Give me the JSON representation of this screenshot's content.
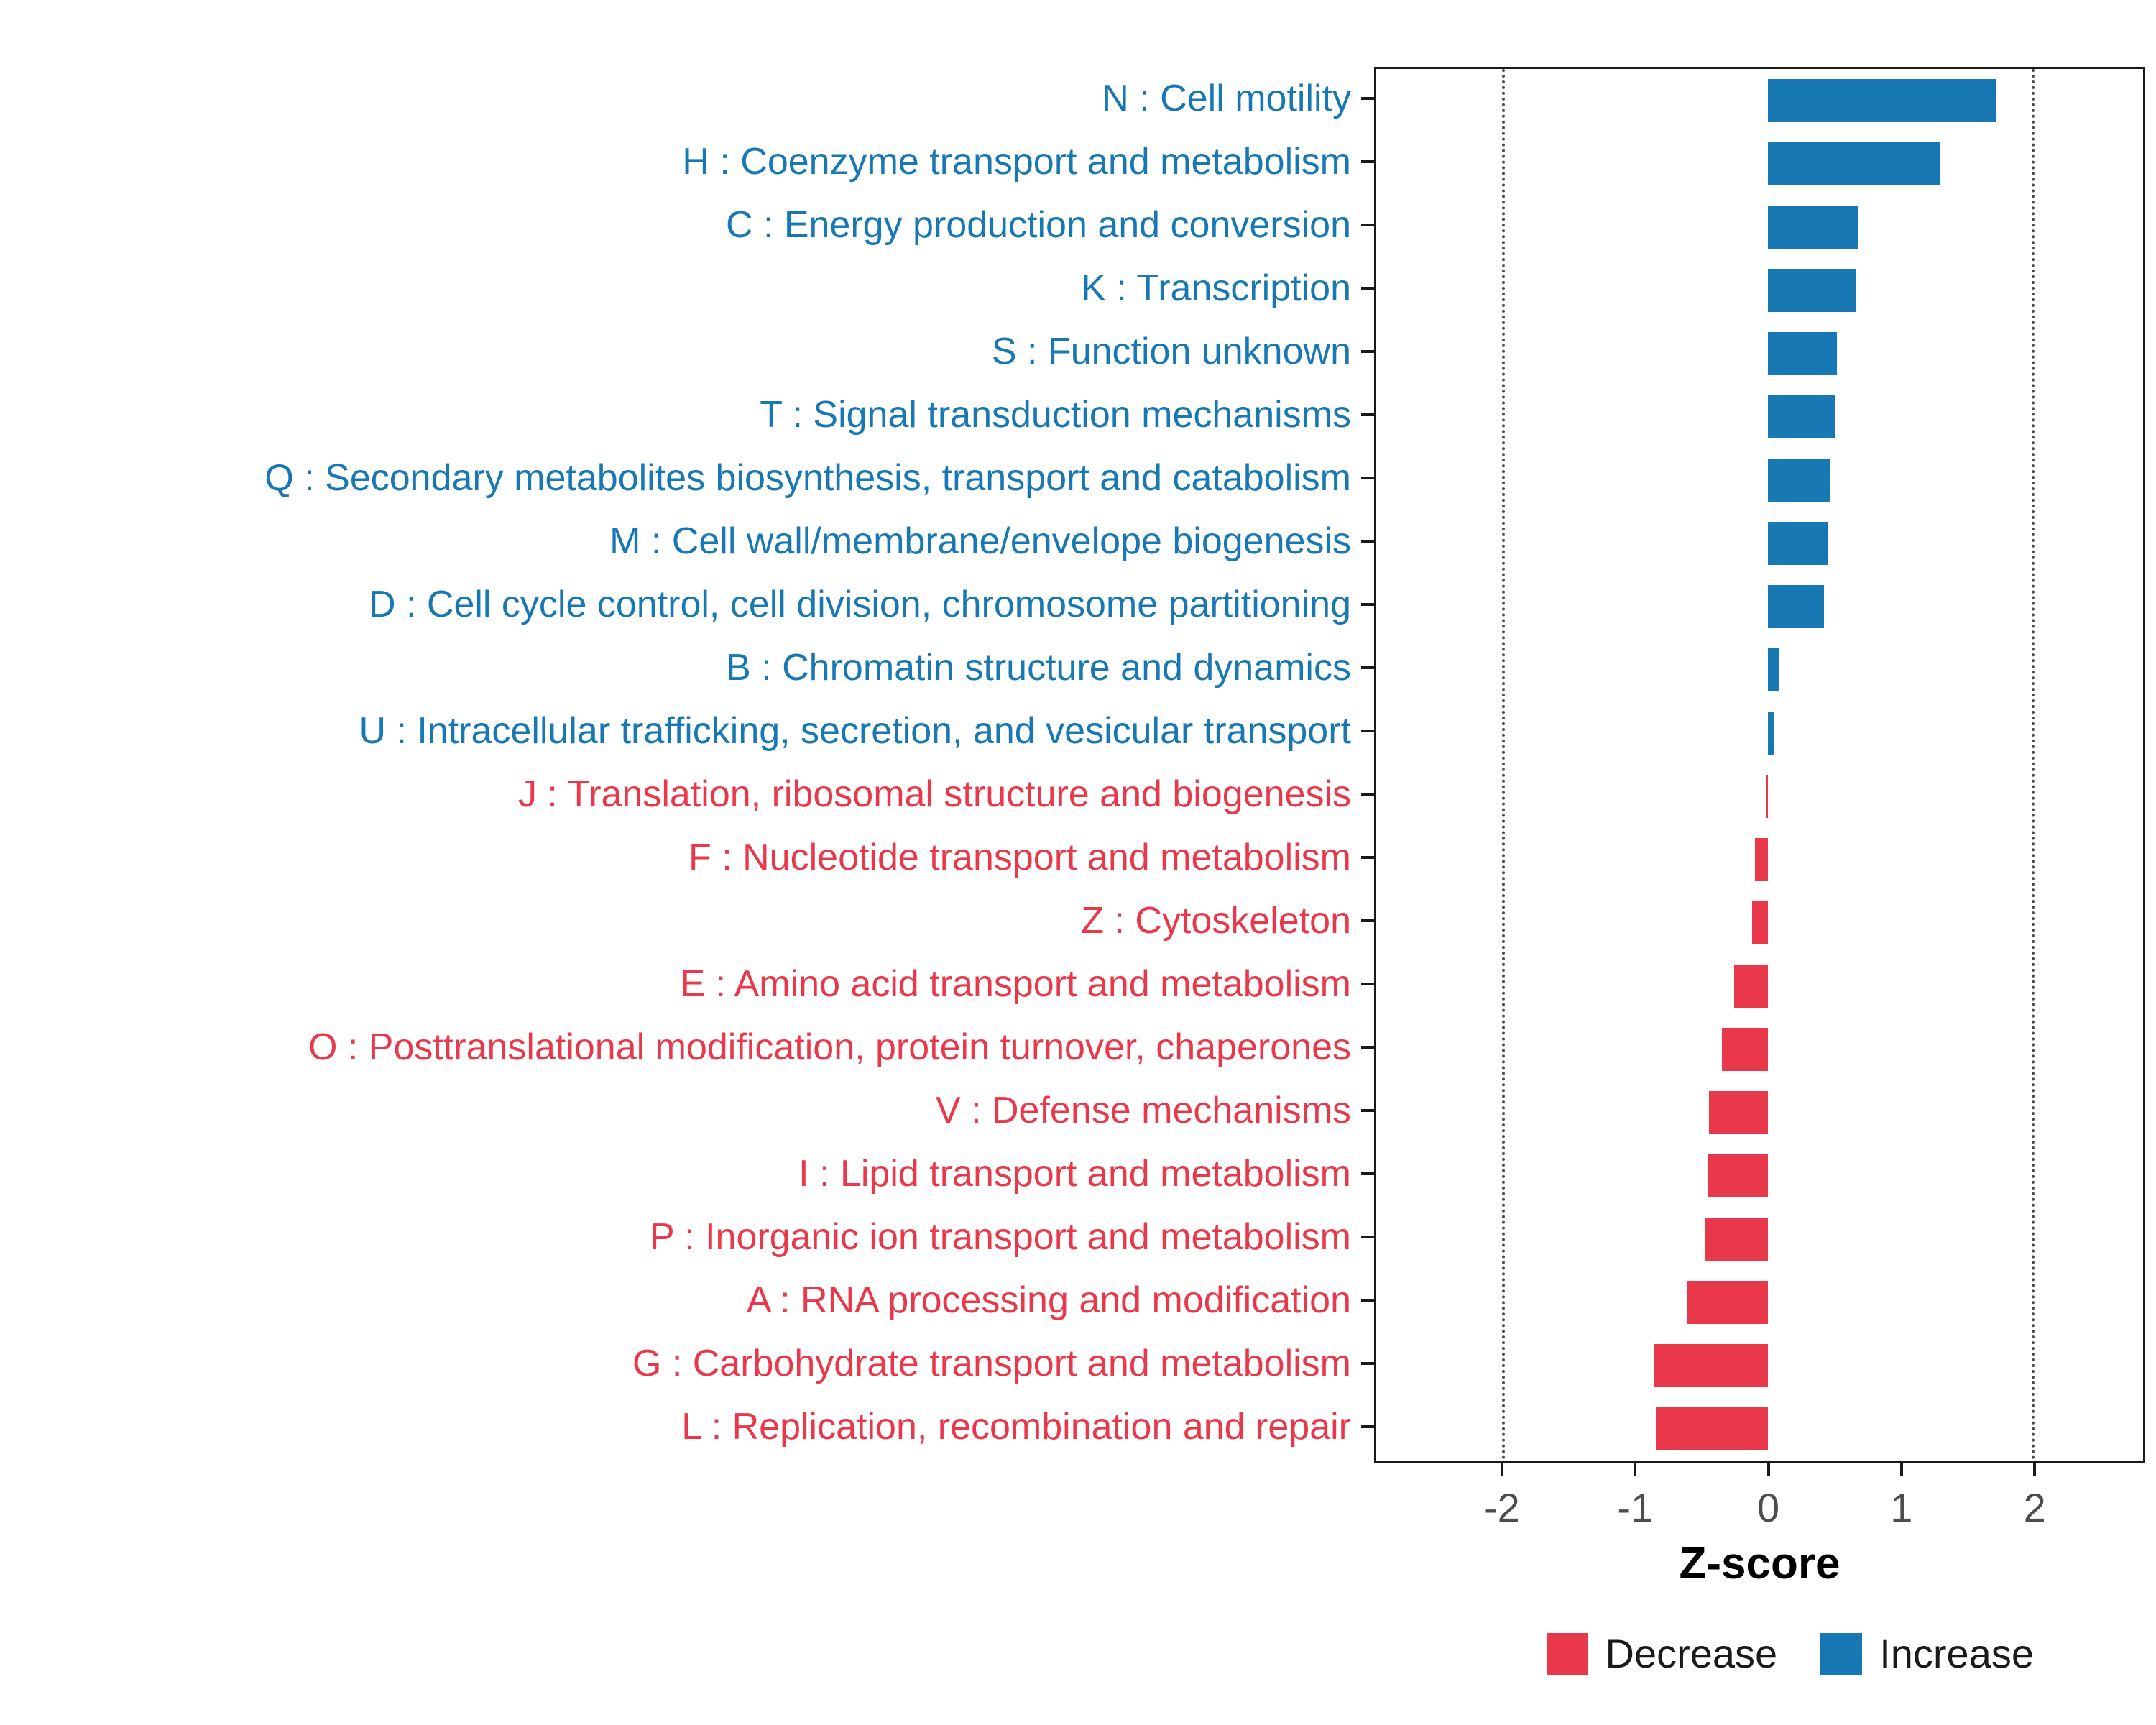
{
  "figure": {
    "background": "#ffffff"
  },
  "chart_data": {
    "type": "bar",
    "orientation": "horizontal",
    "title": "",
    "xlabel": "Z-score",
    "xlim": [
      -2.96,
      2.83
    ],
    "grid": "dotted vertical at -2 and 2",
    "gridlines": [
      -2,
      2
    ],
    "xticks": [
      {
        "value": -2,
        "label": "-2"
      },
      {
        "value": -1,
        "label": "-1"
      },
      {
        "value": 0,
        "label": "0"
      },
      {
        "value": 1,
        "label": "1"
      },
      {
        "value": 2,
        "label": "2"
      }
    ],
    "colors": {
      "increase": "#1878B4",
      "decrease": "#E8384A"
    },
    "rows": [
      {
        "label": "N : Cell motility",
        "value": 1.72,
        "direction": "increase"
      },
      {
        "label": "H : Coenzyme transport and metabolism",
        "value": 1.3,
        "direction": "increase"
      },
      {
        "label": "C : Energy production and conversion",
        "value": 0.68,
        "direction": "increase"
      },
      {
        "label": "K : Transcription",
        "value": 0.66,
        "direction": "increase"
      },
      {
        "label": "S : Function unknown",
        "value": 0.52,
        "direction": "increase"
      },
      {
        "label": "T : Signal transduction mechanisms",
        "value": 0.5,
        "direction": "increase"
      },
      {
        "label": "Q : Secondary metabolites biosynthesis, transport and catabolism",
        "value": 0.47,
        "direction": "increase"
      },
      {
        "label": "M : Cell wall/membrane/envelope biogenesis",
        "value": 0.45,
        "direction": "increase"
      },
      {
        "label": "D : Cell cycle control, cell division, chromosome partitioning",
        "value": 0.42,
        "direction": "increase"
      },
      {
        "label": "B : Chromatin structure and dynamics",
        "value": 0.08,
        "direction": "increase"
      },
      {
        "label": "U : Intracellular trafficking, secretion, and vesicular transport",
        "value": 0.04,
        "direction": "increase"
      },
      {
        "label": "J : Translation, ribosomal structure and biogenesis",
        "value": -0.02,
        "direction": "decrease"
      },
      {
        "label": "F : Nucleotide transport and metabolism",
        "value": -0.1,
        "direction": "decrease"
      },
      {
        "label": "Z : Cytoskeleton",
        "value": -0.12,
        "direction": "decrease"
      },
      {
        "label": "E : Amino acid transport and metabolism",
        "value": -0.26,
        "direction": "decrease"
      },
      {
        "label": "O : Posttranslational modification, protein turnover, chaperones",
        "value": -0.35,
        "direction": "decrease"
      },
      {
        "label": "V : Defense mechanisms",
        "value": -0.45,
        "direction": "decrease"
      },
      {
        "label": "I : Lipid transport and metabolism",
        "value": -0.46,
        "direction": "decrease"
      },
      {
        "label": "P : Inorganic ion transport and metabolism",
        "value": -0.48,
        "direction": "decrease"
      },
      {
        "label": "A : RNA processing and modification",
        "value": -0.61,
        "direction": "decrease"
      },
      {
        "label": "G : Carbohydrate transport and metabolism",
        "value": -0.86,
        "direction": "decrease"
      },
      {
        "label": "L : Replication, recombination and repair",
        "value": -0.85,
        "direction": "decrease"
      }
    ],
    "legend": {
      "position": "bottom-right",
      "items": [
        {
          "label": "Decrease",
          "direction": "decrease"
        },
        {
          "label": "Increase",
          "direction": "increase"
        }
      ]
    }
  }
}
